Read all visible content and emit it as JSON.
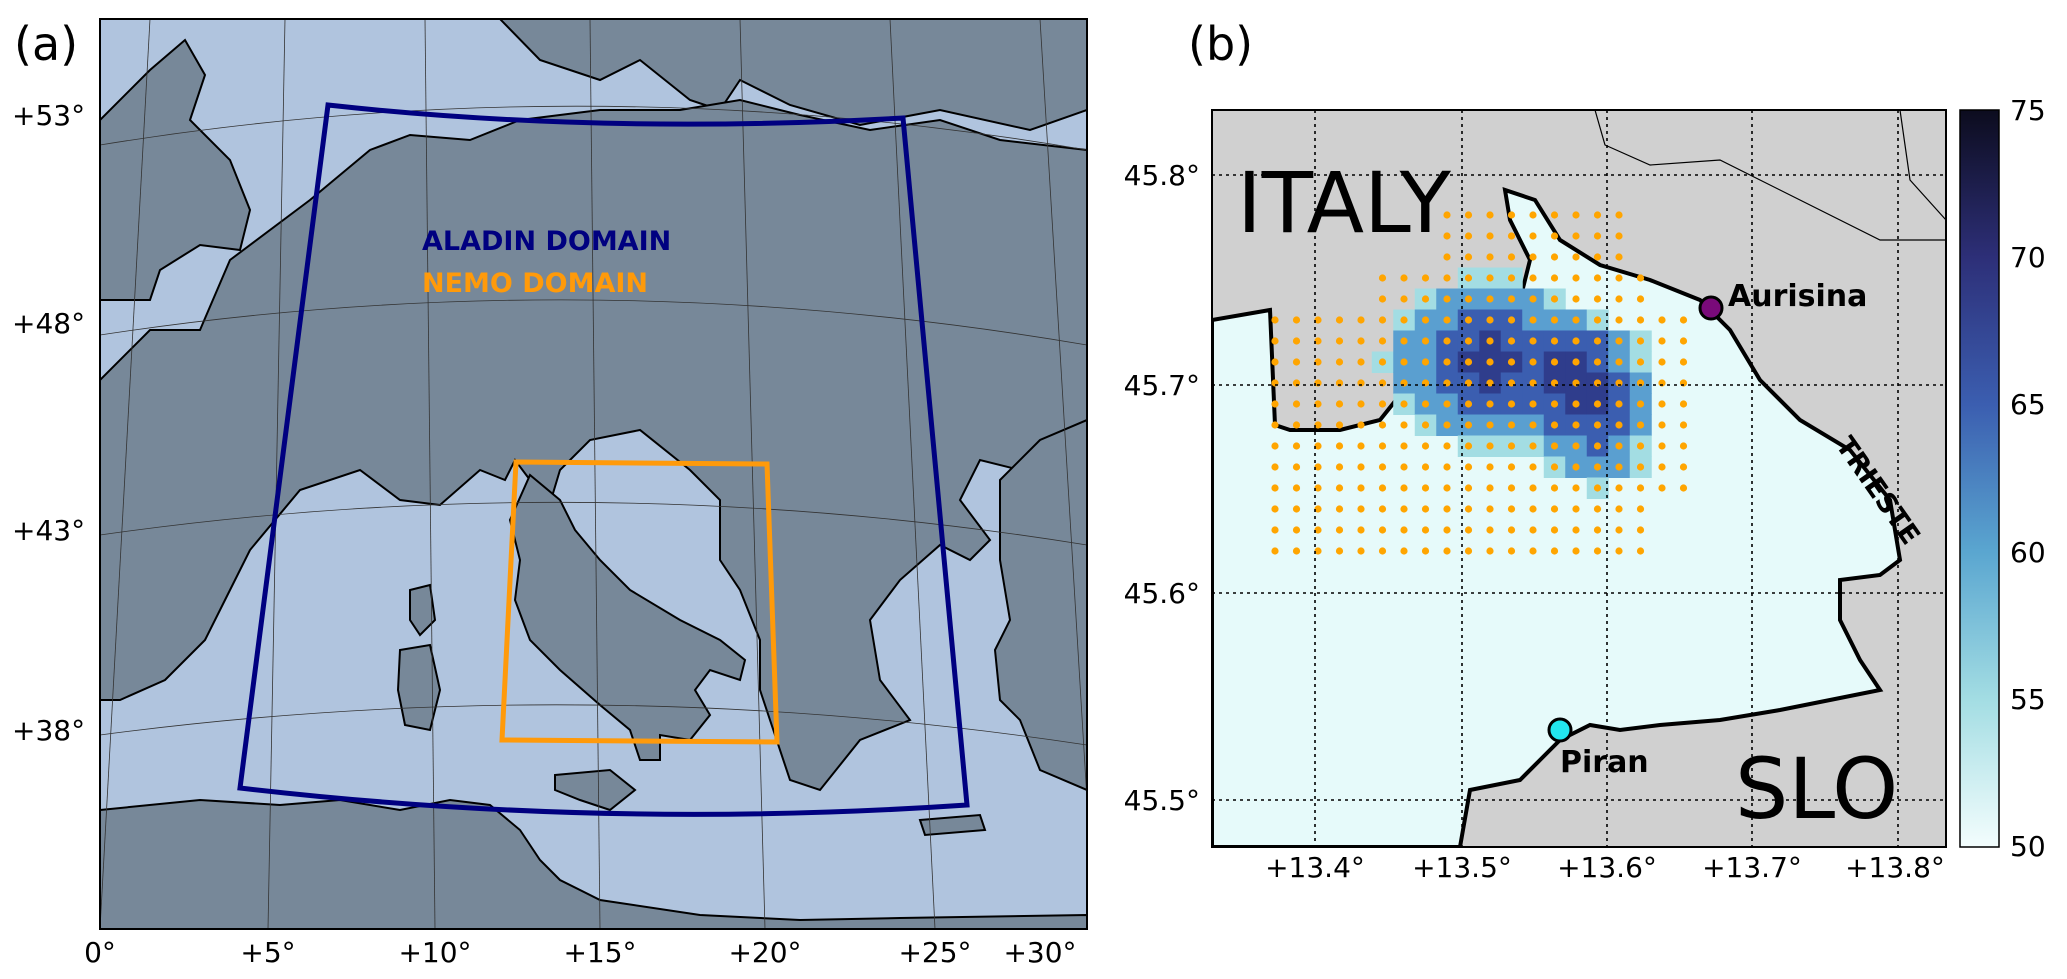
{
  "panel_a": {
    "label": "(a)",
    "lat_ticks": [
      "+53°",
      "+48°",
      "+43°",
      "+38°"
    ],
    "lon_ticks": [
      "0°",
      "+5°",
      "+10°",
      "+15°",
      "+20°",
      "+25°",
      "+30°"
    ],
    "aladin_label": "ALADIN DOMAIN",
    "nemo_label": "NEMO DOMAIN",
    "colors": {
      "sea": "#b0c4de",
      "land": "#778899",
      "aladin": "#000080",
      "nemo": "#ff9a0a"
    }
  },
  "panel_b": {
    "label": "(b)",
    "lat_ticks": [
      "45.8°",
      "45.7°",
      "45.6°",
      "45.5°"
    ],
    "lon_ticks": [
      "+13.4°",
      "+13.5°",
      "+13.6°",
      "+13.7°",
      "+13.8°"
    ],
    "region_labels": {
      "italy": "ITALY",
      "slo": "SLO",
      "trieste": "TRIESTE"
    },
    "stations": [
      {
        "name": "Aurisina",
        "color": "#7a0a7a"
      },
      {
        "name": "Piran",
        "color": "#22e6ee"
      }
    ],
    "colorbar": {
      "ticks": [
        "75",
        "70",
        "65",
        "60",
        "55",
        "50"
      ],
      "min": 50,
      "max": 75
    },
    "colors": {
      "land": "#d0d0d0",
      "grid_dot": "#ffa500"
    }
  }
}
